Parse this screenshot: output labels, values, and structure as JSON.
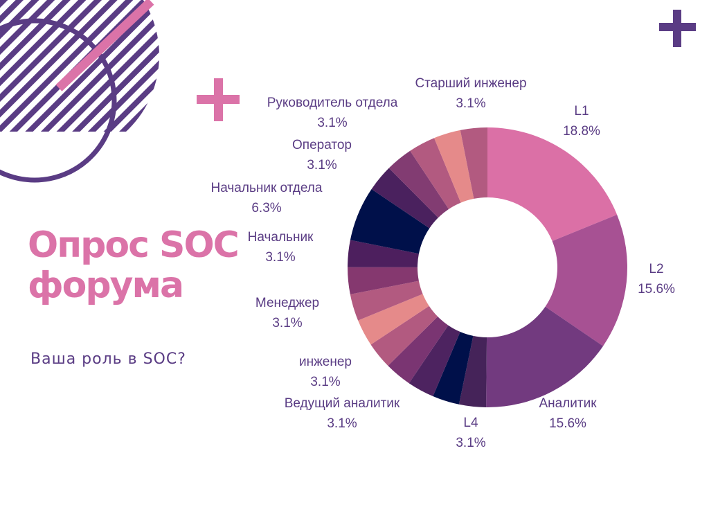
{
  "page": {
    "title_line1": "Опрос SOC",
    "title_line2": "форума",
    "subtitle": "Ваша роль в SOC?",
    "accent_pink": "#db73a8",
    "accent_purple": "#5a3c84"
  },
  "chart_data": {
    "type": "pie",
    "donut": true,
    "title": "",
    "series": [
      {
        "label": "L1",
        "value": 18.8,
        "display": "18.8%",
        "color": "#db70a6"
      },
      {
        "label": "L2",
        "value": 15.6,
        "display": "15.6%",
        "color": "#a75193"
      },
      {
        "label": "Аналитик",
        "value": 15.6,
        "display": "15.6%",
        "color": "#723a7f"
      },
      {
        "label": "L4",
        "value": 3.1,
        "display": "3.1%",
        "color": "#452359"
      },
      {
        "label": "",
        "value": 3.1,
        "display": "",
        "color": "#00104a"
      },
      {
        "label": "Ведущий аналитик",
        "value": 3.1,
        "display": "3.1%",
        "color": "#4d2360"
      },
      {
        "label": "",
        "value": 3.1,
        "display": "",
        "color": "#7a3572"
      },
      {
        "label": "инженер",
        "value": 3.1,
        "display": "3.1%",
        "color": "#b25a80"
      },
      {
        "label": "",
        "value": 3.1,
        "display": "",
        "color": "#e58a8a"
      },
      {
        "label": "Менеджер",
        "value": 3.1,
        "display": "3.1%",
        "color": "#b25a80"
      },
      {
        "label": "",
        "value": 3.1,
        "display": "",
        "color": "#85386f"
      },
      {
        "label": "Начальник",
        "value": 3.1,
        "display": "3.1%",
        "color": "#4d1f5e"
      },
      {
        "label": "Начальник отдела",
        "value": 6.3,
        "display": "6.3%",
        "color": "#00104a"
      },
      {
        "label": "",
        "value": 3.1,
        "display": "",
        "color": "#4a215e"
      },
      {
        "label": "Оператор",
        "value": 3.1,
        "display": "3.1%",
        "color": "#823c72"
      },
      {
        "label": "Руководитель отдела",
        "value": 3.1,
        "display": "3.1%",
        "color": "#b25a80"
      },
      {
        "label": "",
        "value": 3.1,
        "display": "",
        "color": "#e58a8a"
      },
      {
        "label": "Старший инженер",
        "value": 3.1,
        "display": "3.1%",
        "color": "#b25a80"
      }
    ]
  }
}
